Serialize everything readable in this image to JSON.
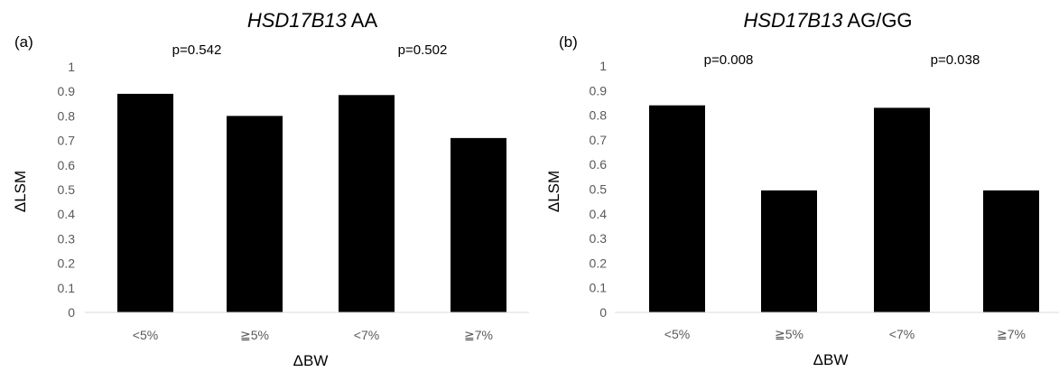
{
  "chart_data": [
    {
      "type": "bar",
      "panel_label": "(a)",
      "title_gene": "HSD17B13",
      "title_genotype": " AA",
      "categories": [
        "<5%",
        "≧5%",
        "<7%",
        "≧7%"
      ],
      "values": [
        0.89,
        0.8,
        0.885,
        0.71
      ],
      "p_values": [
        "p=0.542",
        "p=0.502"
      ],
      "xlabel": "ΔBW",
      "ylabel": "ΔLSM",
      "ylim": [
        0,
        1
      ],
      "yticks": [
        "0",
        "0.1",
        "0.2",
        "0.3",
        "0.4",
        "0.5",
        "0.6",
        "0.7",
        "0.8",
        "0.9",
        "1"
      ],
      "bar_color": "#000000",
      "grid": false
    },
    {
      "type": "bar",
      "panel_label": "(b)",
      "title_gene": "HSD17B13",
      "title_genotype": " AG/GG",
      "categories": [
        "<5%",
        "≧5%",
        "<7%",
        "≧7%"
      ],
      "values": [
        0.84,
        0.495,
        0.83,
        0.495
      ],
      "p_values": [
        "p=0.008",
        "p=0.038"
      ],
      "xlabel": "ΔBW",
      "ylabel": "ΔLSM",
      "ylim": [
        0,
        1
      ],
      "yticks": [
        "0",
        "0.1",
        "0.2",
        "0.3",
        "0.4",
        "0.5",
        "0.6",
        "0.7",
        "0.8",
        "0.9",
        "1"
      ],
      "bar_color": "#000000",
      "grid": false
    }
  ]
}
